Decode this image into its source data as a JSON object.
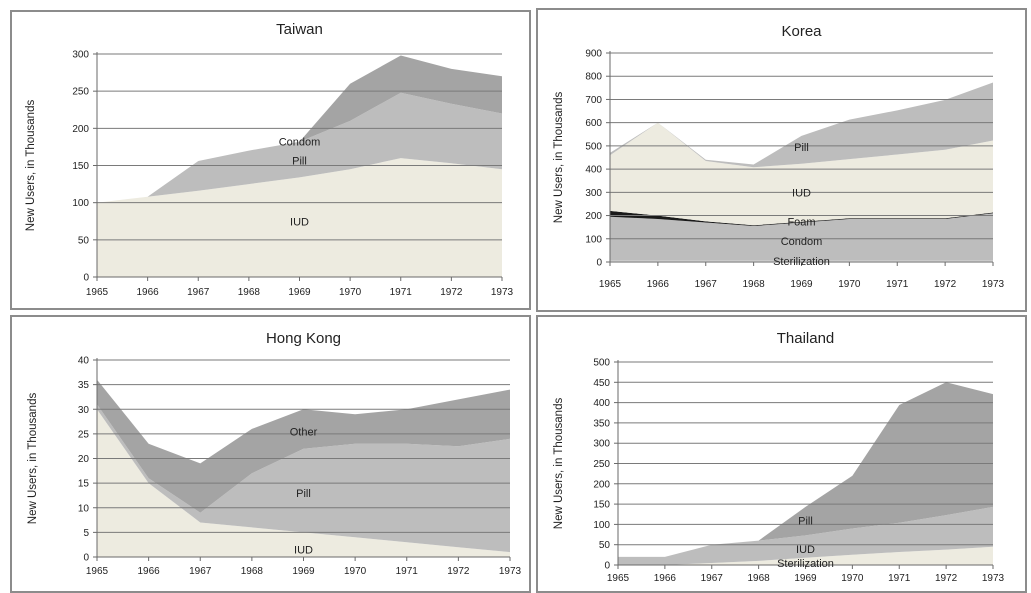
{
  "chart_data": [
    {
      "type": "area",
      "title": "Taiwan",
      "ylabel": "New Users, in Thousands",
      "xlabel": "",
      "x": [
        "1965",
        "1966",
        "1967",
        "1968",
        "1969",
        "1970",
        "1971",
        "1972",
        "1973"
      ],
      "ylim": [
        0,
        300
      ],
      "yticks": [
        0,
        50,
        100,
        150,
        200,
        250,
        300
      ],
      "grid": true,
      "stacked": true,
      "series": [
        {
          "name": "IUD",
          "values": [
            100,
            108,
            116,
            125,
            134,
            145,
            160,
            153,
            145
          ],
          "color": "#edebe0"
        },
        {
          "name": "Pill",
          "values": [
            0,
            0,
            40,
            45,
            48,
            65,
            88,
            80,
            75
          ],
          "color": "#bdbdbd"
        },
        {
          "name": "Condom",
          "values": [
            0,
            0,
            0,
            0,
            0,
            50,
            50,
            47,
            50
          ],
          "color": "#a4a4a4"
        }
      ],
      "labels": [
        {
          "text": "IUD",
          "x": 4,
          "y": 75
        },
        {
          "text": "Pill",
          "x": 4,
          "y": 157
        },
        {
          "text": "Condom",
          "x": 4,
          "y": 182
        }
      ]
    },
    {
      "type": "area",
      "title": "Korea",
      "ylabel": "New Users, in Thousands",
      "xlabel": "",
      "x": [
        "1965",
        "1966",
        "1967",
        "1968",
        "1969",
        "1970",
        "1971",
        "1972",
        "1973"
      ],
      "ylim": [
        0,
        900
      ],
      "yticks": [
        0,
        100,
        200,
        300,
        400,
        500,
        600,
        700,
        800,
        900
      ],
      "grid": true,
      "stacked": true,
      "series": [
        {
          "name": "Sterilization",
          "values": [
            5,
            5,
            5,
            5,
            5,
            5,
            5,
            5,
            5
          ],
          "color": "#e4e4e4"
        },
        {
          "name": "Condom",
          "values": [
            190,
            180,
            165,
            150,
            165,
            180,
            180,
            180,
            205
          ],
          "color": "#bdbdbd"
        },
        {
          "name": "Foam",
          "values": [
            25,
            15,
            5,
            3,
            3,
            3,
            3,
            3,
            3
          ],
          "color": "#1a1a1a"
        },
        {
          "name": "IUD",
          "values": [
            240,
            400,
            260,
            250,
            250,
            255,
            275,
            295,
            310
          ],
          "color": "#edebe0"
        },
        {
          "name": "Pill",
          "values": [
            10,
            0,
            5,
            12,
            120,
            170,
            190,
            215,
            250
          ],
          "color": "#bdbdbd"
        }
      ],
      "labels": [
        {
          "text": "Pill",
          "x": 4,
          "y": 495
        },
        {
          "text": "IUD",
          "x": 4,
          "y": 300
        },
        {
          "text": "Foam",
          "x": 4,
          "y": 175
        },
        {
          "text": "Condom",
          "x": 4,
          "y": 90
        },
        {
          "text": "Sterilization",
          "x": 4,
          "y": 5
        }
      ]
    },
    {
      "type": "area",
      "title": "Hong Kong",
      "ylabel": "New Users, in Thousands",
      "xlabel": "",
      "x": [
        "1965",
        "1966",
        "1967",
        "1968",
        "1969",
        "1970",
        "1971",
        "1972",
        "1973"
      ],
      "ylim": [
        0,
        40
      ],
      "yticks": [
        0,
        5,
        10,
        15,
        20,
        25,
        30,
        35,
        40
      ],
      "grid": true,
      "stacked": true,
      "series": [
        {
          "name": "IUD",
          "values": [
            30,
            15,
            7,
            6,
            5,
            4,
            3,
            2,
            1
          ],
          "color": "#edebe0"
        },
        {
          "name": "Pill",
          "values": [
            1,
            1,
            2,
            11,
            17,
            19,
            20,
            20.5,
            23
          ],
          "color": "#bdbdbd"
        },
        {
          "name": "Other",
          "values": [
            5,
            7,
            10,
            9,
            8,
            6,
            7,
            9.5,
            10
          ],
          "color": "#a4a4a4"
        }
      ],
      "labels": [
        {
          "text": "IUD",
          "x": 4,
          "y": 1.5
        },
        {
          "text": "Pill",
          "x": 4,
          "y": 13
        },
        {
          "text": "Other",
          "x": 4,
          "y": 25.5
        }
      ]
    },
    {
      "type": "area",
      "title": "Thailand",
      "ylabel": "New Users, in Thousands",
      "xlabel": "",
      "x": [
        "1965",
        "1966",
        "1967",
        "1968",
        "1969",
        "1970",
        "1971",
        "1972",
        "1973"
      ],
      "ylim": [
        0,
        500
      ],
      "yticks": [
        0,
        50,
        100,
        150,
        200,
        250,
        300,
        350,
        400,
        450,
        500
      ],
      "grid": true,
      "stacked": true,
      "series": [
        {
          "name": "Sterilization",
          "values": [
            0,
            0,
            5,
            10,
            18,
            25,
            32,
            38,
            45
          ],
          "color": "#edebe0"
        },
        {
          "name": "IUD",
          "values": [
            20,
            20,
            45,
            50,
            55,
            65,
            72,
            85,
            98
          ],
          "color": "#bdbdbd"
        },
        {
          "name": "Pill",
          "values": [
            0,
            0,
            0,
            0,
            70,
            130,
            290,
            327,
            278
          ],
          "color": "#a4a4a4"
        }
      ],
      "labels": [
        {
          "text": "Pill",
          "x": 4,
          "y": 110
        },
        {
          "text": "IUD",
          "x": 4,
          "y": 40
        },
        {
          "text": "Sterilization",
          "x": 4,
          "y": 5
        }
      ]
    }
  ]
}
